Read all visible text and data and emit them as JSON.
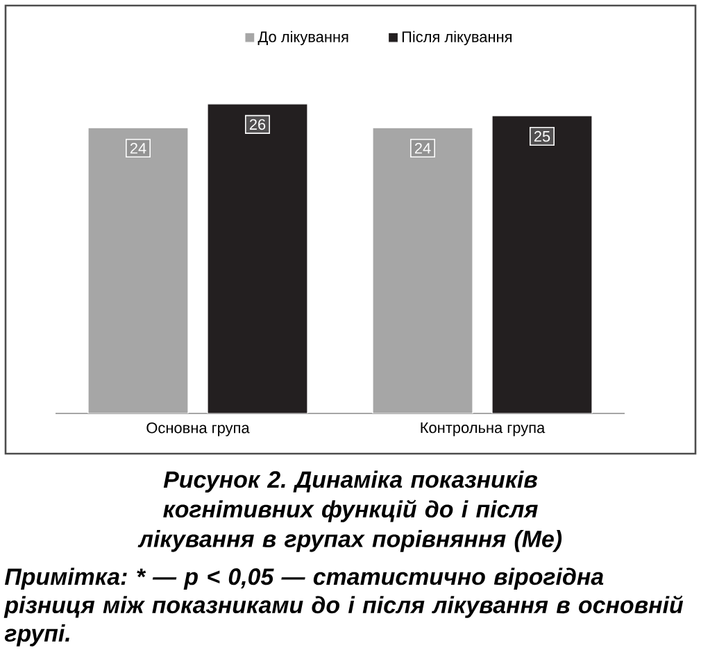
{
  "chart_data": {
    "type": "bar",
    "title": "Рисунок 2. Динаміка показників когнітивних функцій до і після лікування в групах порівняння (Me)",
    "categories": [
      "Основна група",
      "Контрольна група"
    ],
    "series": [
      {
        "name": "До лікування",
        "color": "#a6a6a6",
        "values": [
          24,
          24
        ]
      },
      {
        "name": "Після лікування",
        "color": "#231f20",
        "values": [
          26,
          25
        ]
      }
    ],
    "data_labels": true,
    "legend": "top",
    "annotations": [
      "Примітка: * — p < 0,05 — статистично вірогідна різниця між показниками до і після лікування в основній групі."
    ]
  }
}
